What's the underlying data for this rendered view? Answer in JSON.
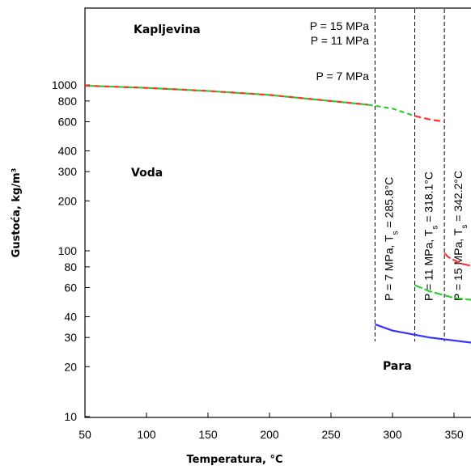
{
  "chart_data": {
    "type": "line",
    "xlabel": "Temperatura, °C",
    "ylabel": "Gustoća, kg/m³",
    "xlim": [
      50,
      380
    ],
    "ylim": [
      10,
      2000
    ],
    "yscale": "log",
    "grid": false,
    "x_ticks": [
      50,
      100,
      150,
      200,
      250,
      300,
      350
    ],
    "y_ticks": [
      10,
      20,
      30,
      40,
      60,
      80,
      100,
      200,
      300,
      400,
      600,
      800,
      1000
    ],
    "liquid_curve": {
      "x": [
        50,
        100,
        150,
        200,
        250,
        280
      ],
      "y": [
        990,
        960,
        920,
        870,
        800,
        760
      ]
    },
    "series": [
      {
        "pressure_label": "P =   7 MPa",
        "color": "#33cc33",
        "liquid": {
          "x": [
            50,
            100,
            150,
            200,
            250,
            285.8
          ],
          "y": [
            990,
            960,
            920,
            870,
            800,
            740
          ]
        },
        "vapor": {
          "x": [
            285.8,
            300,
            330,
            380
          ],
          "y": [
            36,
            33,
            30,
            27
          ]
        },
        "vapor_color": "#3333ff"
      },
      {
        "pressure_label": "P = 11 MPa",
        "color": "#33cc33",
        "liquid": {
          "x": [
            280,
            300,
            318.1
          ],
          "y": [
            760,
            720,
            650
          ]
        },
        "vapor": {
          "x": [
            318.1,
            330,
            350,
            380
          ],
          "y": [
            62,
            57,
            52,
            49
          ]
        },
        "vapor_color": "#33cc33"
      },
      {
        "pressure_label": "P = 15 MPa",
        "color": "#ff3333",
        "liquid": {
          "x": [
            318.1,
            330,
            342.2
          ],
          "y": [
            650,
            620,
            600
          ]
        },
        "vapor": {
          "x": [
            342.2,
            345,
            355,
            380
          ],
          "y": [
            97,
            92,
            84,
            76
          ]
        },
        "vapor_color": "#ff3333"
      }
    ],
    "saturation_lines": [
      {
        "x": 285.8,
        "label_parts": [
          "P = 7 MPa, T",
          "s",
          " = 285.8°C"
        ]
      },
      {
        "x": 318.1,
        "label_parts": [
          "P = 11 MPa, T",
          "s",
          " = 318.1°C"
        ]
      },
      {
        "x": 342.2,
        "label_parts": [
          "P = 15 MPa, T",
          "s",
          " = 342.2°C"
        ]
      }
    ],
    "annotations": {
      "liquid_region": "Kapljevina",
      "vapor_region": "Para",
      "water": "Voda",
      "p15": "P = 15 MPa",
      "p11": "P = 11 MPa",
      "p7": "P =   7 MPa"
    }
  }
}
